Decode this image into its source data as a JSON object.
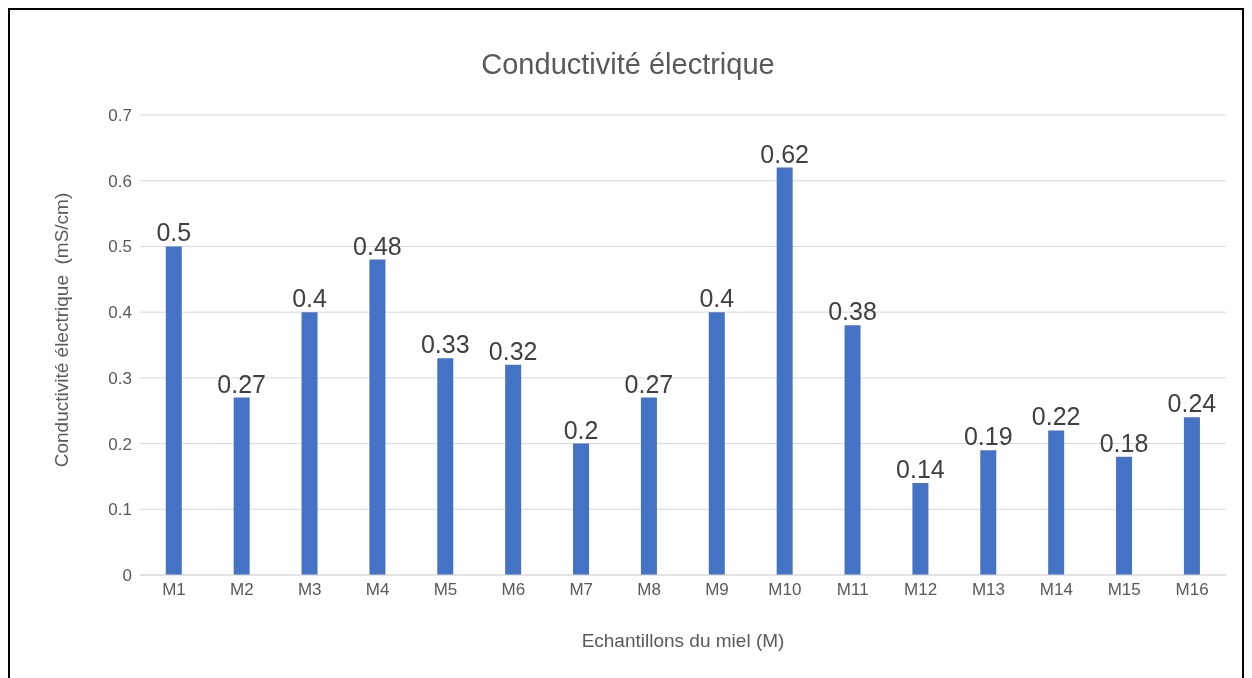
{
  "chart_data": {
    "type": "bar",
    "title": "Conductivité électrique",
    "xlabel": "Echantillons du miel (M)",
    "ylabel": "Conductivité électrique  (mS/cm)",
    "categories": [
      "M1",
      "M2",
      "M3",
      "M4",
      "M5",
      "M6",
      "M7",
      "M8",
      "M9",
      "M10",
      "M11",
      "M12",
      "M13",
      "M14",
      "M15",
      "M16"
    ],
    "values": [
      0.5,
      0.27,
      0.4,
      0.48,
      0.33,
      0.32,
      0.2,
      0.27,
      0.4,
      0.62,
      0.38,
      0.14,
      0.19,
      0.22,
      0.18,
      0.24
    ],
    "color": "#4472c4",
    "ylim": [
      0,
      0.7
    ],
    "yticks": [
      0,
      0.1,
      0.2,
      0.3,
      0.4,
      0.5,
      0.6,
      0.7
    ],
    "grid": "y",
    "data_labels": true
  }
}
